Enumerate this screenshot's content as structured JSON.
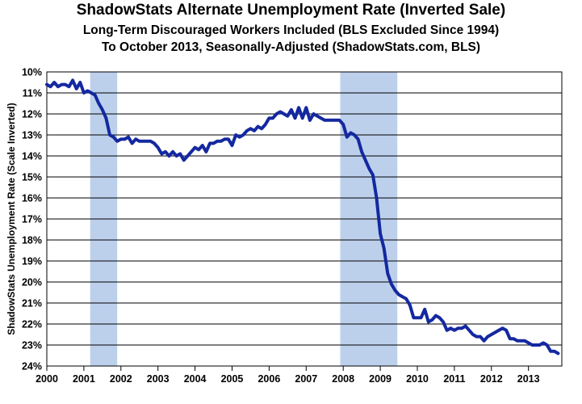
{
  "chart_data": {
    "type": "line",
    "title": "ShadowStats Alternate Unemployment Rate (Inverted Sale)",
    "subtitle_1": "Long-Term Discouraged Workers Included (BLS Excluded Since 1994)",
    "subtitle_2": "To October 2013, Seasonally-Adjusted (ShadowStats.com, BLS)",
    "ylabel": "ShadowStats Unemployment Rate (Scale Inverted)",
    "xlabel": "",
    "y_inverted": true,
    "ylim": [
      10,
      24
    ],
    "xlim": [
      2000,
      2013.9
    ],
    "y_ticks": [
      "10%",
      "11%",
      "12%",
      "13%",
      "14%",
      "15%",
      "16%",
      "17%",
      "18%",
      "19%",
      "20%",
      "21%",
      "22%",
      "23%",
      "24%"
    ],
    "x_ticks": [
      "2000",
      "2001",
      "2002",
      "2003",
      "2004",
      "2005",
      "2006",
      "2007",
      "2008",
      "2009",
      "2010",
      "2011",
      "2012",
      "2013"
    ],
    "grid": true,
    "recession_bands": [
      [
        2001.17,
        2001.9
      ],
      [
        2007.92,
        2009.46
      ]
    ],
    "colors": {
      "line": "#1428a0",
      "recession": "#bcd0ec",
      "grid": "#000000"
    },
    "series": [
      {
        "x": [
          2000.0,
          2000.1,
          2000.2,
          2000.3,
          2000.4,
          2000.5,
          2000.6,
          2000.7,
          2000.8,
          2000.9,
          2001.0,
          2001.1,
          2001.2,
          2001.3,
          2001.4,
          2001.5,
          2001.6,
          2001.7,
          2001.8,
          2001.9,
          2002.0,
          2002.1,
          2002.2,
          2002.3,
          2002.4,
          2002.5,
          2002.6,
          2002.7,
          2002.8,
          2002.9,
          2003.0,
          2003.1,
          2003.2,
          2003.3,
          2003.4,
          2003.5,
          2003.6,
          2003.7,
          2003.8,
          2003.9,
          2004.0,
          2004.1,
          2004.2,
          2004.3,
          2004.4,
          2004.5,
          2004.6,
          2004.7,
          2004.8,
          2004.9,
          2005.0,
          2005.1,
          2005.2,
          2005.3,
          2005.4,
          2005.5,
          2005.6,
          2005.7,
          2005.8,
          2005.9,
          2006.0,
          2006.1,
          2006.2,
          2006.3,
          2006.4,
          2006.5,
          2006.6,
          2006.7,
          2006.8,
          2006.9,
          2007.0,
          2007.1,
          2007.2,
          2007.3,
          2007.4,
          2007.5,
          2007.6,
          2007.7,
          2007.8,
          2007.9,
          2008.0,
          2008.1,
          2008.2,
          2008.3,
          2008.4,
          2008.5,
          2008.6,
          2008.7,
          2008.8,
          2008.9,
          2009.0,
          2009.1,
          2009.2,
          2009.3,
          2009.4,
          2009.5,
          2009.6,
          2009.7,
          2009.8,
          2009.9,
          2010.0,
          2010.1,
          2010.2,
          2010.3,
          2010.4,
          2010.5,
          2010.6,
          2010.7,
          2010.8,
          2010.9,
          2011.0,
          2011.1,
          2011.2,
          2011.3,
          2011.4,
          2011.5,
          2011.6,
          2011.7,
          2011.8,
          2011.9,
          2012.0,
          2012.1,
          2012.2,
          2012.3,
          2012.4,
          2012.5,
          2012.6,
          2012.7,
          2012.8,
          2012.9,
          2013.0,
          2013.1,
          2013.2,
          2013.3,
          2013.4,
          2013.5,
          2013.6,
          2013.7,
          2013.8
        ],
        "values": [
          10.6,
          10.7,
          10.5,
          10.7,
          10.6,
          10.6,
          10.7,
          10.4,
          10.8,
          10.5,
          11.0,
          10.9,
          11.0,
          11.1,
          11.5,
          11.8,
          12.2,
          13.0,
          13.1,
          13.3,
          13.2,
          13.2,
          13.1,
          13.4,
          13.2,
          13.3,
          13.3,
          13.3,
          13.3,
          13.4,
          13.6,
          13.9,
          13.8,
          14.0,
          13.8,
          14.0,
          13.9,
          14.2,
          14.0,
          13.8,
          13.6,
          13.7,
          13.5,
          13.8,
          13.4,
          13.4,
          13.3,
          13.3,
          13.2,
          13.2,
          13.5,
          13.0,
          13.1,
          13.0,
          12.8,
          12.7,
          12.8,
          12.6,
          12.7,
          12.5,
          12.2,
          12.2,
          12.0,
          11.9,
          12.0,
          12.1,
          11.8,
          12.2,
          11.7,
          12.2,
          11.7,
          12.3,
          12.0,
          12.1,
          12.2,
          12.3,
          12.3,
          12.3,
          12.3,
          12.3,
          12.5,
          13.1,
          12.9,
          13.0,
          13.2,
          13.8,
          14.2,
          14.6,
          14.9,
          16.0,
          17.7,
          18.4,
          19.6,
          20.1,
          20.4,
          20.6,
          20.7,
          20.8,
          21.1,
          21.7,
          21.7,
          21.7,
          21.3,
          21.9,
          21.8,
          21.6,
          21.7,
          21.9,
          22.3,
          22.2,
          22.3,
          22.2,
          22.2,
          22.1,
          22.3,
          22.5,
          22.6,
          22.6,
          22.8,
          22.6,
          22.5,
          22.4,
          22.3,
          22.2,
          22.3,
          22.7,
          22.7,
          22.8,
          22.8,
          22.8,
          22.9,
          23.0,
          23.0,
          23.0,
          22.9,
          23.0,
          23.3,
          23.3,
          23.4
        ]
      }
    ]
  }
}
